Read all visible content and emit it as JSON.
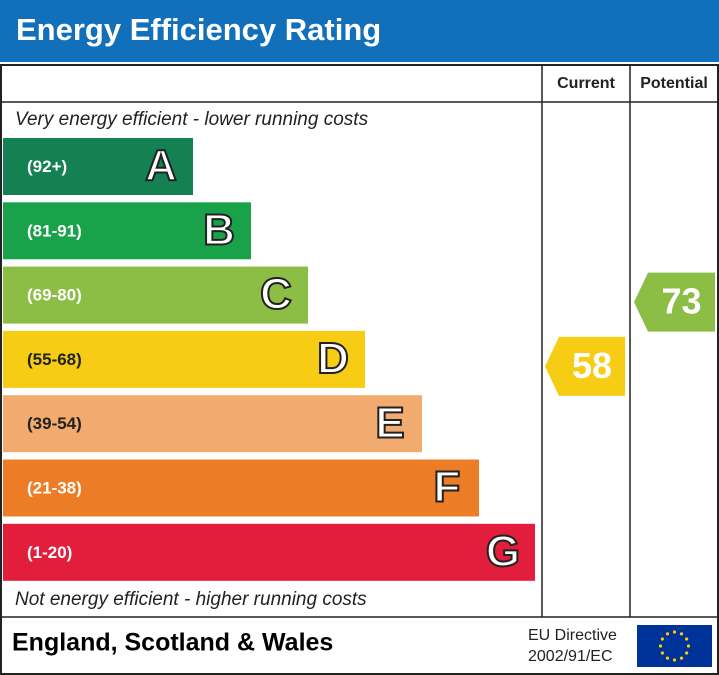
{
  "header": {
    "title": "Energy Efficiency Rating"
  },
  "columns": {
    "current": "Current",
    "potential": "Potential"
  },
  "top_note": "Very energy efficient - lower running costs",
  "bottom_note": "Not energy efficient - higher running costs",
  "bands": [
    {
      "range": "(92+)",
      "letter": "A",
      "color": "#138151"
    },
    {
      "range": "(81-91)",
      "letter": "B",
      "color": "#1aa24b"
    },
    {
      "range": "(69-80)",
      "letter": "C",
      "color": "#8cbd44"
    },
    {
      "range": "(55-68)",
      "letter": "D",
      "color": "#f6cc15"
    },
    {
      "range": "(39-54)",
      "letter": "E",
      "color": "#f2ab6e"
    },
    {
      "range": "(21-38)",
      "letter": "F",
      "color": "#ec7d26"
    },
    {
      "range": "(1-20)",
      "letter": "G",
      "color": "#e21e3c"
    }
  ],
  "current": {
    "value": 58
  },
  "potential": {
    "value": 73
  },
  "footer": {
    "region": "England, Scotland & Wales",
    "directive_line1": "EU Directive",
    "directive_line2": "2002/91/EC"
  }
}
